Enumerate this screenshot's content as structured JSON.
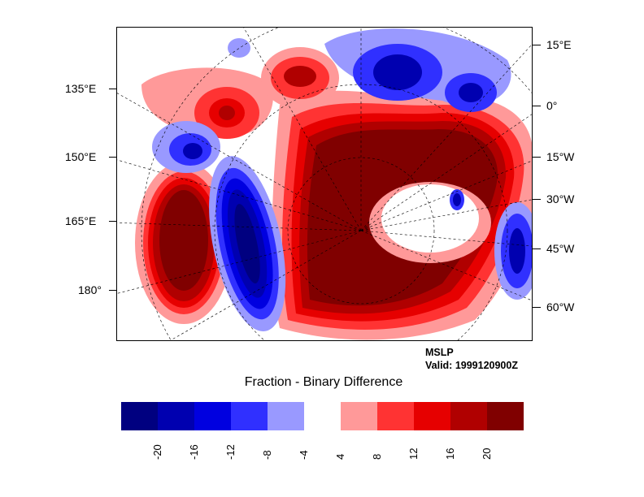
{
  "plot": {
    "variable": "MSLP",
    "valid": "Valid: 1999120900Z",
    "colorbar_title": "Fraction - Binary Difference"
  },
  "axes": {
    "left_labels": [
      "135°E",
      "150°E",
      "165°E",
      "180°"
    ],
    "right_labels": [
      "15°E",
      "0°",
      "15°W",
      "30°W",
      "45°W",
      "60°W"
    ]
  },
  "colorbar": {
    "levels": [
      "-20",
      "-16",
      "-12",
      "-8",
      "-4",
      "4",
      "8",
      "12",
      "16",
      "20"
    ],
    "colors": [
      "#000080",
      "#0000b0",
      "#0000e0",
      "#3030ff",
      "#9999ff",
      "#ffffff",
      "#ff9999",
      "#ff3333",
      "#e60000",
      "#b00000",
      "#800000"
    ]
  }
}
